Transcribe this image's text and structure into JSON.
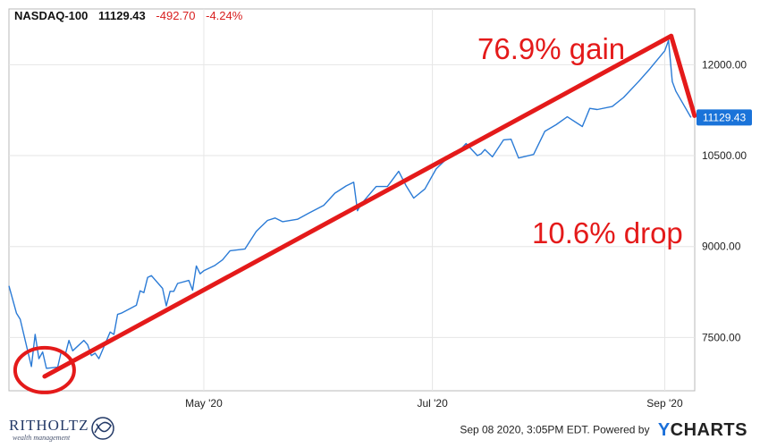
{
  "header": {
    "symbol": "NASDAQ-100",
    "last": "11129.43",
    "change": "-492.70",
    "change_pct": "-4.24%"
  },
  "colors": {
    "line": "#2b7bd6",
    "annotation": "#e41a1a",
    "last_tag_bg": "#1a73d9",
    "grid": "#e6e6e6"
  },
  "chart_data": {
    "type": "line",
    "title": "",
    "xlabel": "",
    "ylabel": "",
    "x_ticks": [
      "May '20",
      "Jul '20",
      "Sep '20"
    ],
    "x_tick_dates": [
      "2020-05-01",
      "2020-07-01",
      "2020-09-01"
    ],
    "y_ticks": [
      7500,
      9000,
      10500,
      12000
    ],
    "y_tick_labels": [
      "7500.00",
      "9000.00",
      "10500.00",
      "12000.00"
    ],
    "xlim": [
      "2020-03-10",
      "2020-09-09"
    ],
    "ylim": [
      6620,
      12920
    ],
    "grid": true,
    "y_axis_side": "right",
    "series": [
      {
        "name": "NASDAQ-100",
        "x": [
          "2020-03-10",
          "2020-03-12",
          "2020-03-13",
          "2020-03-16",
          "2020-03-17",
          "2020-03-18",
          "2020-03-19",
          "2020-03-20",
          "2020-03-23",
          "2020-03-24",
          "2020-03-25",
          "2020-03-26",
          "2020-03-27",
          "2020-03-30",
          "2020-03-31",
          "2020-04-01",
          "2020-04-02",
          "2020-04-03",
          "2020-04-06",
          "2020-04-07",
          "2020-04-08",
          "2020-04-09",
          "2020-04-13",
          "2020-04-14",
          "2020-04-15",
          "2020-04-16",
          "2020-04-17",
          "2020-04-20",
          "2020-04-21",
          "2020-04-22",
          "2020-04-23",
          "2020-04-24",
          "2020-04-27",
          "2020-04-28",
          "2020-04-29",
          "2020-04-30",
          "2020-05-01",
          "2020-05-04",
          "2020-05-06",
          "2020-05-08",
          "2020-05-12",
          "2020-05-15",
          "2020-05-18",
          "2020-05-20",
          "2020-05-22",
          "2020-05-26",
          "2020-05-29",
          "2020-06-02",
          "2020-06-05",
          "2020-06-08",
          "2020-06-10",
          "2020-06-11",
          "2020-06-12",
          "2020-06-16",
          "2020-06-19",
          "2020-06-22",
          "2020-06-24",
          "2020-06-26",
          "2020-06-29",
          "2020-07-02",
          "2020-07-06",
          "2020-07-08",
          "2020-07-10",
          "2020-07-13",
          "2020-07-14",
          "2020-07-15",
          "2020-07-17",
          "2020-07-20",
          "2020-07-22",
          "2020-07-24",
          "2020-07-28",
          "2020-07-31",
          "2020-08-03",
          "2020-08-06",
          "2020-08-10",
          "2020-08-12",
          "2020-08-14",
          "2020-08-18",
          "2020-08-21",
          "2020-08-25",
          "2020-08-28",
          "2020-09-01",
          "2020-09-02",
          "2020-09-03",
          "2020-09-04",
          "2020-09-08"
        ],
        "values": [
          8350,
          7900,
          7800,
          7020,
          7550,
          7150,
          7260,
          6990,
          7010,
          7280,
          7210,
          7450,
          7280,
          7450,
          7380,
          7200,
          7240,
          7150,
          7590,
          7550,
          7880,
          7900,
          8030,
          8270,
          8240,
          8490,
          8520,
          8310,
          8020,
          8260,
          8260,
          8390,
          8440,
          8280,
          8680,
          8550,
          8600,
          8690,
          8780,
          8930,
          8960,
          9250,
          9430,
          9470,
          9410,
          9450,
          9550,
          9680,
          9880,
          10000,
          10060,
          9590,
          9700,
          9990,
          9990,
          10240,
          10000,
          9800,
          9950,
          10280,
          10520,
          10570,
          10700,
          10500,
          10530,
          10600,
          10480,
          10760,
          10770,
          10460,
          10520,
          10900,
          11010,
          11140,
          10980,
          11280,
          11260,
          11310,
          11460,
          11720,
          11930,
          12230,
          12400,
          11720,
          11560,
          11129
        ]
      }
    ],
    "last_value_label": "11129.43",
    "annotations": [
      {
        "text": "76.9% gain"
      },
      {
        "text": "10.6% drop"
      }
    ]
  },
  "footer": {
    "timestamp": "Sep 08 2020, 3:05PM EDT.",
    "powered_by": "Powered by",
    "brand_y": "Y",
    "brand_rest": "CHARTS"
  },
  "logo": {
    "name": "RITHOLTZ",
    "tagline": "wealth management"
  }
}
